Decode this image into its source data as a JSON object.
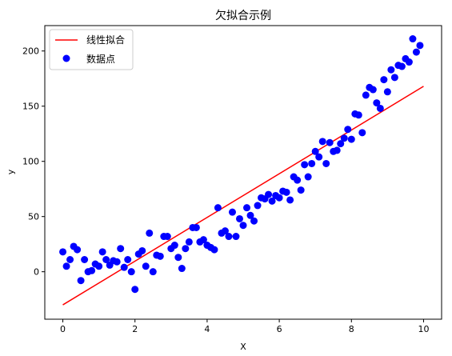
{
  "chart_data": {
    "type": "scatter",
    "title": "欠拟合示例",
    "xlabel": "X",
    "ylabel": "y",
    "xlim": [
      -0.5,
      10.5
    ],
    "ylim": [
      -43,
      223
    ],
    "xticks": [
      0,
      2,
      4,
      6,
      8,
      10
    ],
    "yticks": [
      0,
      50,
      100,
      150,
      200
    ],
    "grid": false,
    "legend_position": "top-left",
    "series": [
      {
        "name": "线性拟合",
        "type": "line",
        "color": "#ff0000",
        "x": [
          0,
          10
        ],
        "y": [
          -30,
          168
        ]
      },
      {
        "name": "数据点",
        "type": "scatter",
        "color": "#0000ff",
        "points": [
          [
            0.0,
            18
          ],
          [
            0.1,
            5
          ],
          [
            0.2,
            11
          ],
          [
            0.3,
            23
          ],
          [
            0.4,
            20
          ],
          [
            0.5,
            -8
          ],
          [
            0.6,
            11
          ],
          [
            0.7,
            0
          ],
          [
            0.8,
            1
          ],
          [
            0.9,
            7
          ],
          [
            1.0,
            5
          ],
          [
            1.1,
            18
          ],
          [
            1.2,
            11
          ],
          [
            1.3,
            6
          ],
          [
            1.4,
            10
          ],
          [
            1.5,
            9
          ],
          [
            1.6,
            21
          ],
          [
            1.7,
            4
          ],
          [
            1.8,
            11
          ],
          [
            1.9,
            0
          ],
          [
            2.0,
            -16
          ],
          [
            2.1,
            16
          ],
          [
            2.2,
            19
          ],
          [
            2.3,
            5
          ],
          [
            2.4,
            35
          ],
          [
            2.5,
            0
          ],
          [
            2.6,
            15
          ],
          [
            2.7,
            14
          ],
          [
            2.8,
            32
          ],
          [
            2.9,
            32
          ],
          [
            3.0,
            21
          ],
          [
            3.1,
            24
          ],
          [
            3.2,
            13
          ],
          [
            3.3,
            3
          ],
          [
            3.4,
            21
          ],
          [
            3.5,
            27
          ],
          [
            3.6,
            40
          ],
          [
            3.7,
            40
          ],
          [
            3.8,
            27
          ],
          [
            3.9,
            29
          ],
          [
            4.0,
            24
          ],
          [
            4.1,
            22
          ],
          [
            4.2,
            20
          ],
          [
            4.3,
            58
          ],
          [
            4.4,
            35
          ],
          [
            4.5,
            37
          ],
          [
            4.6,
            32
          ],
          [
            4.7,
            54
          ],
          [
            4.8,
            32
          ],
          [
            4.9,
            48
          ],
          [
            5.0,
            42
          ],
          [
            5.1,
            58
          ],
          [
            5.2,
            51
          ],
          [
            5.3,
            46
          ],
          [
            5.4,
            60
          ],
          [
            5.5,
            67
          ],
          [
            5.6,
            66
          ],
          [
            5.7,
            70
          ],
          [
            5.8,
            64
          ],
          [
            5.9,
            69
          ],
          [
            6.0,
            67
          ],
          [
            6.1,
            73
          ],
          [
            6.2,
            72
          ],
          [
            6.3,
            65
          ],
          [
            6.4,
            86
          ],
          [
            6.5,
            83
          ],
          [
            6.6,
            74
          ],
          [
            6.7,
            97
          ],
          [
            6.8,
            86
          ],
          [
            6.9,
            98
          ],
          [
            7.0,
            109
          ],
          [
            7.1,
            104
          ],
          [
            7.2,
            118
          ],
          [
            7.3,
            98
          ],
          [
            7.4,
            117
          ],
          [
            7.5,
            109
          ],
          [
            7.6,
            110
          ],
          [
            7.7,
            116
          ],
          [
            7.8,
            121
          ],
          [
            7.9,
            129
          ],
          [
            8.0,
            120
          ],
          [
            8.1,
            143
          ],
          [
            8.2,
            142
          ],
          [
            8.3,
            126
          ],
          [
            8.4,
            160
          ],
          [
            8.5,
            167
          ],
          [
            8.6,
            165
          ],
          [
            8.7,
            153
          ],
          [
            8.8,
            148
          ],
          [
            8.9,
            174
          ],
          [
            9.0,
            163
          ],
          [
            9.1,
            183
          ],
          [
            9.2,
            176
          ],
          [
            9.3,
            187
          ],
          [
            9.4,
            186
          ],
          [
            9.5,
            193
          ],
          [
            9.6,
            190
          ],
          [
            9.7,
            211
          ],
          [
            9.8,
            199
          ],
          [
            9.9,
            205
          ]
        ]
      }
    ]
  }
}
